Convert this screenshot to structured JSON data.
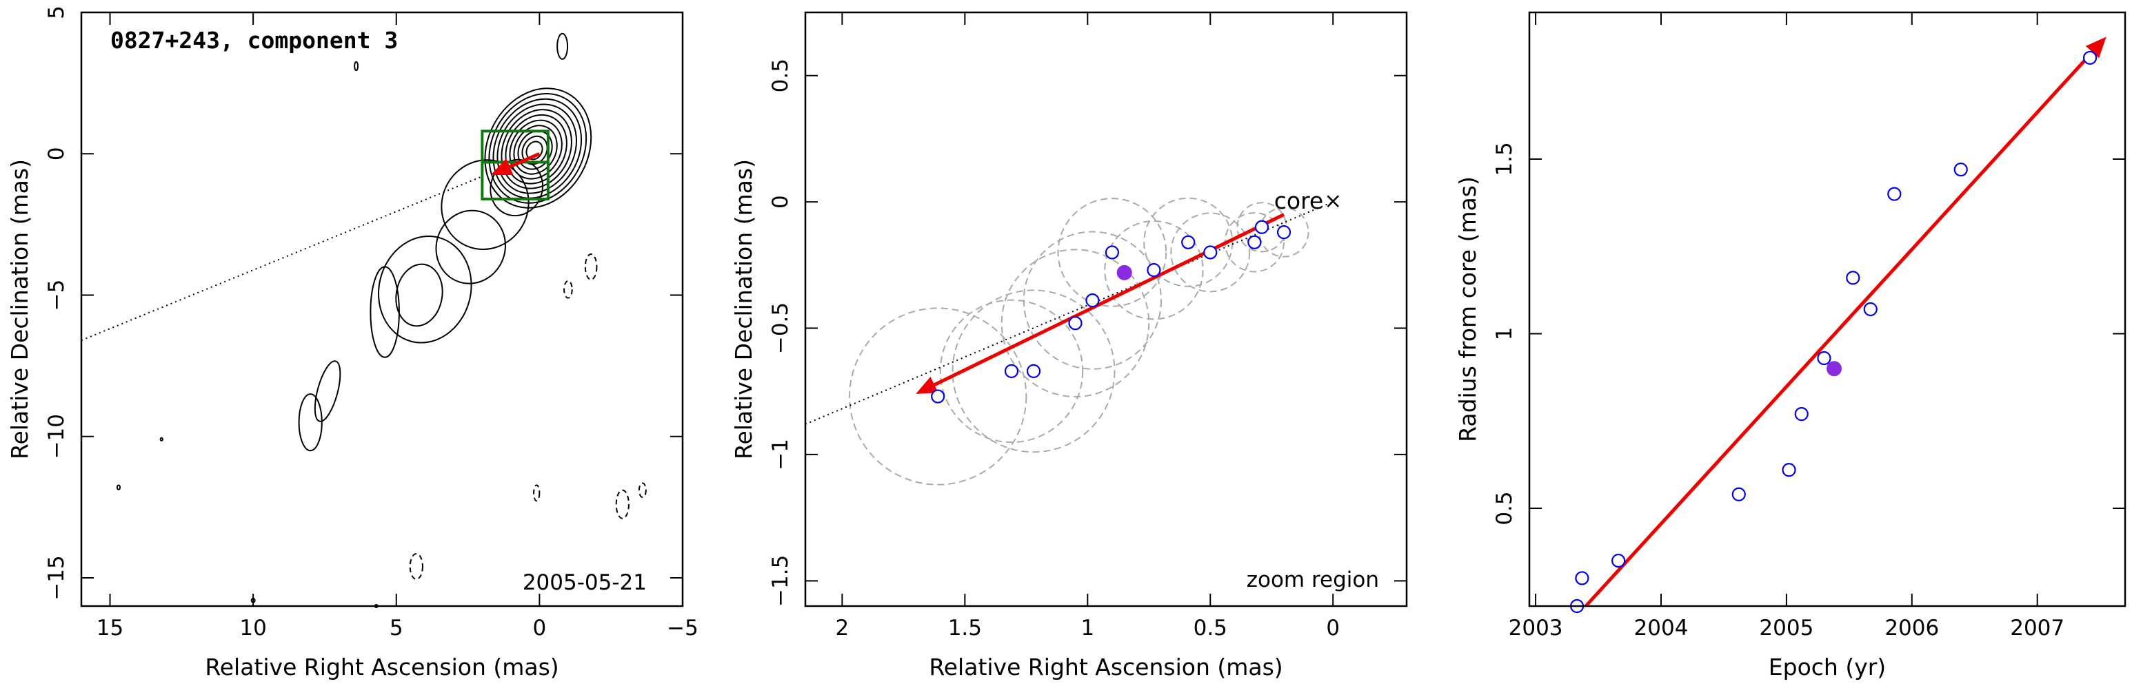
{
  "colors": {
    "arrow": "#ee0000",
    "open_point": "#0000ee",
    "filled_point": "#8a2be2",
    "zoom_box": "#117711",
    "rings": "#aaaaaa"
  },
  "chart_data": [
    {
      "type": "contour",
      "title": "0827+243, component 3",
      "date_label": "2005-05-21",
      "xlabel": "Relative Right Ascension (mas)",
      "ylabel": "Relative Declination (mas)",
      "xlim": [
        16,
        -5
      ],
      "ylim": [
        -16,
        5
      ],
      "xticks": [
        15,
        10,
        5,
        0,
        -5
      ],
      "yticks": [
        5,
        0,
        -5,
        -10,
        -15
      ],
      "xtick_labels": [
        "15",
        "10",
        "5",
        "0",
        "−5"
      ],
      "ytick_labels": [
        "5",
        "0",
        "−5",
        "−10",
        "−15"
      ],
      "zoom_box": {
        "x": [
          2,
          -0.3
        ],
        "y": [
          0.8,
          -1.6
        ]
      },
      "trajectory_line": {
        "x": [
          16,
          2
        ],
        "y": [
          -6.6,
          -0.8
        ]
      },
      "arrow": {
        "from": [
          0,
          0
        ],
        "to": [
          1.7,
          -0.75
        ]
      }
    },
    {
      "type": "scatter",
      "label": "zoom region",
      "core_label": "core",
      "xlabel": "Relative Right Ascension (mas)",
      "ylabel": "Relative Declination (mas)",
      "xlim": [
        2.15,
        -0.3
      ],
      "ylim": [
        -1.6,
        0.75
      ],
      "xticks": [
        2,
        1.5,
        1,
        0.5,
        0
      ],
      "yticks": [
        0.5,
        0,
        -0.5,
        -1,
        -1.5
      ],
      "xtick_labels": [
        "2",
        "1.5",
        "1",
        "0.5",
        "0"
      ],
      "ytick_labels": [
        "0.5",
        "0",
        "−0.5",
        "−1",
        "−1.5"
      ],
      "core": [
        0,
        0
      ],
      "components": [
        {
          "x": 1.61,
          "y": -0.77,
          "size": 0.36
        },
        {
          "x": 1.31,
          "y": -0.67,
          "size": 0.29
        },
        {
          "x": 1.22,
          "y": -0.67,
          "size": 0.33
        },
        {
          "x": 1.05,
          "y": -0.48,
          "size": 0.3
        },
        {
          "x": 0.98,
          "y": -0.39,
          "size": 0.28
        },
        {
          "x": 0.9,
          "y": -0.2,
          "size": 0.22
        },
        {
          "x": 0.73,
          "y": -0.27,
          "size": 0.2
        },
        {
          "x": 0.59,
          "y": -0.16,
          "size": 0.18
        },
        {
          "x": 0.5,
          "y": -0.2,
          "size": 0.16
        },
        {
          "x": 0.32,
          "y": -0.16,
          "size": 0.12
        },
        {
          "x": 0.29,
          "y": -0.1,
          "size": 0.1
        },
        {
          "x": 0.2,
          "y": -0.12,
          "size": 0.1
        }
      ],
      "highlighted": {
        "x": 0.85,
        "y": -0.28
      },
      "trajectory_line": {
        "x": [
          2.15,
          0
        ],
        "y": [
          -0.88,
          0
        ]
      },
      "arrow": {
        "from": [
          0.2,
          -0.05
        ],
        "to": [
          1.7,
          -0.76
        ]
      }
    },
    {
      "type": "scatter",
      "xlabel": "Epoch (yr)",
      "ylabel": "Radius from core (mas)",
      "xlim": [
        2002.95,
        2007.7
      ],
      "ylim": [
        0.22,
        1.92
      ],
      "xticks": [
        2003,
        2004,
        2005,
        2006,
        2007
      ],
      "yticks": [
        0.5,
        1,
        1.5
      ],
      "xtick_labels": [
        "2003",
        "2004",
        "2005",
        "2006",
        "2007"
      ],
      "ytick_labels": [
        "0.5",
        "1",
        "1.5"
      ],
      "points": [
        {
          "x": 2003.33,
          "y": 0.22
        },
        {
          "x": 2003.37,
          "y": 0.3
        },
        {
          "x": 2003.66,
          "y": 0.35
        },
        {
          "x": 2004.62,
          "y": 0.54
        },
        {
          "x": 2005.02,
          "y": 0.61
        },
        {
          "x": 2005.12,
          "y": 0.77
        },
        {
          "x": 2005.3,
          "y": 0.93
        },
        {
          "x": 2005.53,
          "y": 1.16
        },
        {
          "x": 2005.67,
          "y": 1.07
        },
        {
          "x": 2005.86,
          "y": 1.4
        },
        {
          "x": 2006.39,
          "y": 1.47
        },
        {
          "x": 2007.42,
          "y": 1.79
        }
      ],
      "highlighted": {
        "x": 2005.38,
        "y": 0.9
      },
      "fit_arrow": {
        "from": [
          2003.4,
          0.22
        ],
        "to": [
          2007.55,
          1.85
        ]
      }
    }
  ]
}
